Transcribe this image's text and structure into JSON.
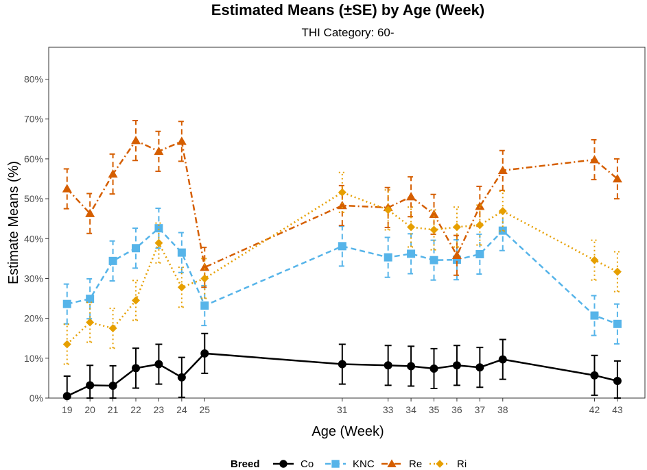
{
  "chart_data": {
    "type": "line",
    "title": "Estimated Means (±SE) by Age (Week)",
    "subtitle": "THI Category: 60-",
    "xlabel": "Age (Week)",
    "ylabel": "Estimate Means (%)",
    "x": [
      19,
      20,
      21,
      22,
      23,
      24,
      25,
      31,
      33,
      34,
      35,
      36,
      37,
      38,
      42,
      43
    ],
    "x_tick_labels": [
      "19",
      "20",
      "21",
      "22",
      "23",
      "24",
      "25",
      "31",
      "33",
      "34",
      "35",
      "36",
      "37",
      "38",
      "42",
      "43"
    ],
    "xlim": [
      18.2,
      44.2
    ],
    "ylim": [
      0,
      0.88
    ],
    "y_ticks": [
      0,
      0.1,
      0.2,
      0.3,
      0.4,
      0.5,
      0.6,
      0.7,
      0.8
    ],
    "y_tick_labels": [
      "0%",
      "10%",
      "20%",
      "30%",
      "40%",
      "50%",
      "60%",
      "70%",
      "80%"
    ],
    "legend_title": "Breed",
    "legend_position": "bottom",
    "series": [
      {
        "name": "Co",
        "color": "#000000",
        "marker": "circle",
        "dash": "solid",
        "error_style": "solid",
        "values": [
          0.005,
          0.032,
          0.031,
          0.075,
          0.085,
          0.052,
          0.112,
          0.085,
          0.082,
          0.08,
          0.074,
          0.082,
          0.077,
          0.097,
          0.057,
          0.043
        ],
        "se": [
          0.05,
          0.05,
          0.05,
          0.05,
          0.05,
          0.05,
          0.05,
          0.05,
          0.05,
          0.05,
          0.05,
          0.05,
          0.05,
          0.05,
          0.05,
          0.05
        ]
      },
      {
        "name": "KNC",
        "color": "#56B4E9",
        "marker": "square",
        "dash": "dashed",
        "error_style": "dashed",
        "values": [
          0.236,
          0.249,
          0.344,
          0.376,
          0.426,
          0.365,
          0.232,
          0.381,
          0.353,
          0.362,
          0.346,
          0.347,
          0.361,
          0.42,
          0.207,
          0.186
        ],
        "se": [
          0.05,
          0.05,
          0.05,
          0.05,
          0.05,
          0.05,
          0.05,
          0.05,
          0.05,
          0.05,
          0.05,
          0.05,
          0.05,
          0.05,
          0.05,
          0.05
        ]
      },
      {
        "name": "Re",
        "color": "#D55E00",
        "marker": "triangle",
        "dash": "dashdot",
        "error_style": "dashed",
        "values": [
          0.525,
          0.463,
          0.562,
          0.646,
          0.619,
          0.644,
          0.328,
          0.483,
          0.478,
          0.505,
          0.461,
          0.358,
          0.481,
          0.571,
          0.598,
          0.55
        ],
        "se": [
          0.05,
          0.05,
          0.05,
          0.05,
          0.05,
          0.05,
          0.05,
          0.05,
          0.05,
          0.05,
          0.05,
          0.05,
          0.05,
          0.05,
          0.05,
          0.05
        ]
      },
      {
        "name": "Ri",
        "color": "#E69F00",
        "marker": "diamond",
        "dash": "dotted",
        "error_style": "dotted",
        "values": [
          0.135,
          0.19,
          0.175,
          0.245,
          0.389,
          0.278,
          0.3,
          0.516,
          0.472,
          0.429,
          0.422,
          0.429,
          0.434,
          0.469,
          0.346,
          0.317
        ],
        "se": [
          0.05,
          0.05,
          0.05,
          0.05,
          0.05,
          0.05,
          0.05,
          0.05,
          0.05,
          0.05,
          0.05,
          0.05,
          0.05,
          0.05,
          0.05,
          0.05
        ]
      }
    ]
  }
}
